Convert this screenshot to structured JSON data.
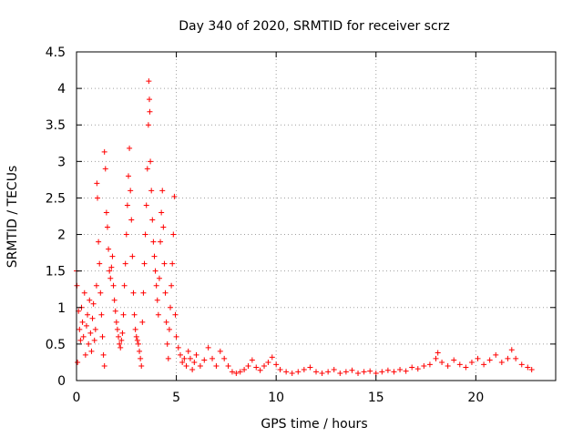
{
  "chart_data": {
    "type": "scatter",
    "title": "Day 340 of 2020, SRMTID for receiver scrz",
    "xlabel": "GPS time / hours",
    "ylabel": "SRMTID / TECUs",
    "xlim": [
      0,
      24
    ],
    "ylim": [
      0,
      4.5
    ],
    "x_ticks": [
      0,
      5,
      10,
      15,
      20
    ],
    "y_ticks": [
      0,
      0.5,
      1,
      1.5,
      2,
      2.5,
      3,
      3.5,
      4,
      4.5
    ],
    "x_tick_labels": [
      "0",
      "5",
      "10",
      "15",
      "20"
    ],
    "y_tick_labels": [
      "0",
      "0.5",
      "1",
      "1.5",
      "2",
      "2.5",
      "3",
      "3.5",
      "4",
      "4.5"
    ],
    "grid": true,
    "marker": "+",
    "marker_color": "#ff0000",
    "series": [
      {
        "name": "SRMTID",
        "points": [
          [
            0.0,
            1.5
          ],
          [
            0.02,
            1.3
          ],
          [
            0.05,
            0.25
          ],
          [
            0.1,
            0.95
          ],
          [
            0.15,
            0.7
          ],
          [
            0.2,
            0.55
          ],
          [
            0.25,
            1.0
          ],
          [
            0.3,
            0.8
          ],
          [
            0.35,
            0.6
          ],
          [
            0.4,
            1.2
          ],
          [
            0.45,
            0.35
          ],
          [
            0.5,
            0.75
          ],
          [
            0.55,
            0.9
          ],
          [
            0.6,
            0.5
          ],
          [
            0.65,
            1.1
          ],
          [
            0.7,
            0.65
          ],
          [
            0.75,
            0.4
          ],
          [
            0.8,
            0.85
          ],
          [
            0.85,
            1.05
          ],
          [
            0.9,
            0.55
          ],
          [
            0.95,
            0.7
          ],
          [
            1.0,
            1.3
          ],
          [
            1.02,
            2.7
          ],
          [
            1.05,
            2.5
          ],
          [
            1.1,
            1.9
          ],
          [
            1.15,
            1.6
          ],
          [
            1.2,
            1.2
          ],
          [
            1.25,
            0.9
          ],
          [
            1.3,
            0.6
          ],
          [
            1.35,
            0.35
          ],
          [
            1.4,
            0.2
          ],
          [
            1.4,
            3.13
          ],
          [
            1.45,
            2.9
          ],
          [
            1.5,
            2.3
          ],
          [
            1.55,
            2.1
          ],
          [
            1.6,
            1.8
          ],
          [
            1.65,
            1.5
          ],
          [
            1.7,
            1.4
          ],
          [
            1.75,
            1.55
          ],
          [
            1.8,
            1.7
          ],
          [
            1.85,
            1.3
          ],
          [
            1.9,
            1.1
          ],
          [
            1.95,
            0.95
          ],
          [
            2.0,
            0.8
          ],
          [
            2.05,
            0.7
          ],
          [
            2.1,
            0.6
          ],
          [
            2.15,
            0.5
          ],
          [
            2.2,
            0.45
          ],
          [
            2.25,
            0.55
          ],
          [
            2.3,
            0.65
          ],
          [
            2.35,
            0.9
          ],
          [
            2.4,
            1.3
          ],
          [
            2.45,
            1.6
          ],
          [
            2.5,
            2.0
          ],
          [
            2.55,
            2.4
          ],
          [
            2.6,
            2.8
          ],
          [
            2.65,
            3.18
          ],
          [
            2.7,
            2.6
          ],
          [
            2.75,
            2.2
          ],
          [
            2.8,
            1.7
          ],
          [
            2.85,
            1.2
          ],
          [
            2.9,
            0.9
          ],
          [
            2.95,
            0.7
          ],
          [
            3.0,
            0.6
          ],
          [
            3.05,
            0.55
          ],
          [
            3.1,
            0.5
          ],
          [
            3.15,
            0.4
          ],
          [
            3.2,
            0.3
          ],
          [
            3.25,
            0.2
          ],
          [
            3.3,
            0.8
          ],
          [
            3.35,
            1.2
          ],
          [
            3.4,
            1.6
          ],
          [
            3.45,
            2.0
          ],
          [
            3.5,
            2.4
          ],
          [
            3.55,
            2.9
          ],
          [
            3.6,
            3.5
          ],
          [
            3.62,
            4.1
          ],
          [
            3.65,
            3.85
          ],
          [
            3.67,
            3.68
          ],
          [
            3.7,
            3.0
          ],
          [
            3.75,
            2.6
          ],
          [
            3.8,
            2.2
          ],
          [
            3.85,
            1.9
          ],
          [
            3.9,
            1.7
          ],
          [
            3.95,
            1.5
          ],
          [
            4.0,
            1.3
          ],
          [
            4.05,
            1.1
          ],
          [
            4.1,
            0.9
          ],
          [
            4.15,
            1.4
          ],
          [
            4.2,
            1.9
          ],
          [
            4.25,
            2.3
          ],
          [
            4.3,
            2.6
          ],
          [
            4.35,
            2.1
          ],
          [
            4.4,
            1.6
          ],
          [
            4.45,
            1.2
          ],
          [
            4.5,
            0.8
          ],
          [
            4.55,
            0.5
          ],
          [
            4.6,
            0.3
          ],
          [
            4.65,
            0.7
          ],
          [
            4.7,
            1.0
          ],
          [
            4.75,
            1.3
          ],
          [
            4.8,
            1.6
          ],
          [
            4.85,
            2.0
          ],
          [
            4.9,
            2.52
          ],
          [
            4.95,
            0.9
          ],
          [
            5.0,
            0.6
          ],
          [
            5.1,
            0.45
          ],
          [
            5.2,
            0.35
          ],
          [
            5.3,
            0.25
          ],
          [
            5.4,
            0.3
          ],
          [
            5.5,
            0.2
          ],
          [
            5.6,
            0.4
          ],
          [
            5.7,
            0.3
          ],
          [
            5.8,
            0.15
          ],
          [
            5.9,
            0.25
          ],
          [
            6.0,
            0.35
          ],
          [
            6.2,
            0.2
          ],
          [
            6.4,
            0.28
          ],
          [
            6.6,
            0.45
          ],
          [
            6.8,
            0.3
          ],
          [
            7.0,
            0.2
          ],
          [
            7.2,
            0.4
          ],
          [
            7.4,
            0.3
          ],
          [
            7.6,
            0.2
          ],
          [
            7.8,
            0.12
          ],
          [
            8.0,
            0.1
          ],
          [
            8.2,
            0.12
          ],
          [
            8.4,
            0.15
          ],
          [
            8.6,
            0.2
          ],
          [
            8.8,
            0.28
          ],
          [
            9.0,
            0.18
          ],
          [
            9.2,
            0.14
          ],
          [
            9.4,
            0.2
          ],
          [
            9.6,
            0.25
          ],
          [
            9.8,
            0.32
          ],
          [
            10.0,
            0.22
          ],
          [
            10.2,
            0.15
          ],
          [
            10.5,
            0.12
          ],
          [
            10.8,
            0.1
          ],
          [
            11.1,
            0.12
          ],
          [
            11.4,
            0.15
          ],
          [
            11.7,
            0.18
          ],
          [
            12.0,
            0.12
          ],
          [
            12.3,
            0.1
          ],
          [
            12.6,
            0.12
          ],
          [
            12.9,
            0.15
          ],
          [
            13.2,
            0.1
          ],
          [
            13.5,
            0.12
          ],
          [
            13.8,
            0.14
          ],
          [
            14.1,
            0.1
          ],
          [
            14.4,
            0.12
          ],
          [
            14.7,
            0.13
          ],
          [
            15.0,
            0.1
          ],
          [
            15.3,
            0.12
          ],
          [
            15.6,
            0.14
          ],
          [
            15.9,
            0.12
          ],
          [
            16.2,
            0.15
          ],
          [
            16.5,
            0.13
          ],
          [
            16.8,
            0.18
          ],
          [
            17.1,
            0.16
          ],
          [
            17.4,
            0.2
          ],
          [
            17.7,
            0.22
          ],
          [
            18.0,
            0.3
          ],
          [
            18.1,
            0.38
          ],
          [
            18.3,
            0.25
          ],
          [
            18.6,
            0.2
          ],
          [
            18.9,
            0.28
          ],
          [
            19.2,
            0.22
          ],
          [
            19.5,
            0.18
          ],
          [
            19.8,
            0.25
          ],
          [
            20.1,
            0.3
          ],
          [
            20.4,
            0.22
          ],
          [
            20.7,
            0.28
          ],
          [
            21.0,
            0.35
          ],
          [
            21.3,
            0.25
          ],
          [
            21.6,
            0.3
          ],
          [
            21.8,
            0.42
          ],
          [
            22.0,
            0.3
          ],
          [
            22.3,
            0.22
          ],
          [
            22.6,
            0.18
          ],
          [
            22.8,
            0.15
          ]
        ]
      }
    ]
  }
}
